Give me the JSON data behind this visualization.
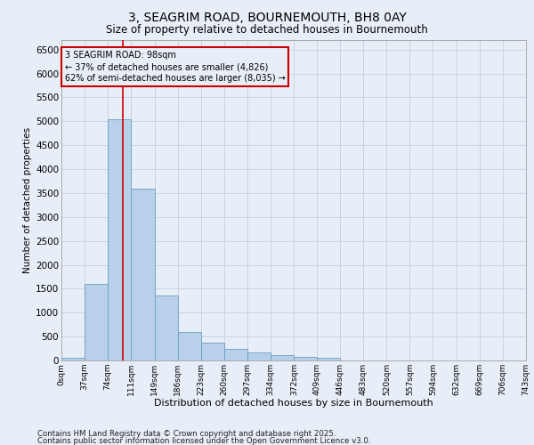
{
  "title_line1": "3, SEAGRIM ROAD, BOURNEMOUTH, BH8 0AY",
  "title_line2": "Size of property relative to detached houses in Bournemouth",
  "xlabel": "Distribution of detached houses by size in Bournemouth",
  "ylabel": "Number of detached properties",
  "footnote1": "Contains HM Land Registry data © Crown copyright and database right 2025.",
  "footnote2": "Contains public sector information licensed under the Open Government Licence v3.0.",
  "bar_edges": [
    0,
    37,
    74,
    111,
    149,
    186,
    223,
    260,
    297,
    334,
    372,
    409,
    446,
    483,
    520,
    557,
    594,
    632,
    669,
    706,
    743
  ],
  "bar_heights": [
    50,
    1600,
    5050,
    3600,
    1350,
    600,
    370,
    250,
    175,
    120,
    80,
    50,
    0,
    0,
    0,
    0,
    0,
    0,
    0,
    0
  ],
  "bar_color": "#b8d0ea",
  "bar_edge_color": "#6a9fc0",
  "background_color": "#e8eef7",
  "vline_x": 98,
  "vline_color": "#cc0000",
  "annotation_text": "3 SEAGRIM ROAD: 98sqm\n← 37% of detached houses are smaller (4,826)\n62% of semi-detached houses are larger (8,035) →",
  "annotation_box_color": "#cc0000",
  "ylim": [
    0,
    6700
  ],
  "yticks": [
    0,
    500,
    1000,
    1500,
    2000,
    2500,
    3000,
    3500,
    4000,
    4500,
    5000,
    5500,
    6000,
    6500
  ],
  "tick_labels": [
    "0sqm",
    "37sqm",
    "74sqm",
    "111sqm",
    "149sqm",
    "186sqm",
    "223sqm",
    "260sqm",
    "297sqm",
    "334sqm",
    "372sqm",
    "409sqm",
    "446sqm",
    "483sqm",
    "520sqm",
    "557sqm",
    "594sqm",
    "632sqm",
    "669sqm",
    "706sqm",
    "743sqm"
  ],
  "grid_color": "#c8d4e4",
  "xlim_max": 743
}
